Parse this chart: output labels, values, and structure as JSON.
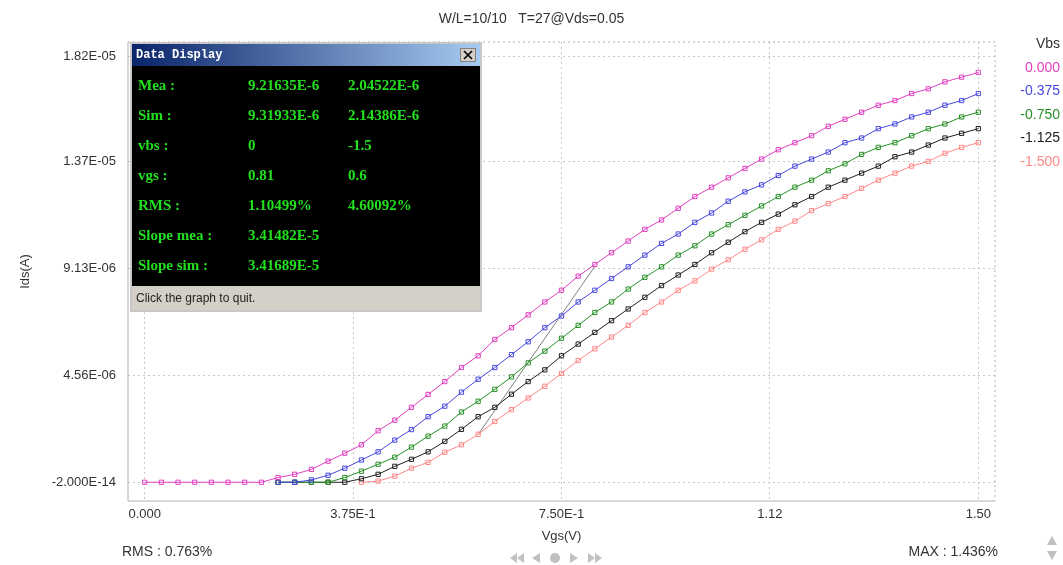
{
  "chart_data": {
    "type": "line",
    "title": "W/L=10/10   T=27@Vds=0.05",
    "xlabel": "Vgs(V)",
    "ylabel": "Ids(A)",
    "legend_title": "Vbs",
    "legend": "right",
    "grid": true,
    "marker": "square",
    "line_style": "solid",
    "xlim": [
      -0.03,
      1.53
    ],
    "ylim": [
      -8e-07,
      1.88e-05
    ],
    "xticks": [
      {
        "value": 0,
        "label": "0.000"
      },
      {
        "value": 0.375,
        "label": "3.75E-1"
      },
      {
        "value": 0.75,
        "label": "7.50E-1"
      },
      {
        "value": 1.125,
        "label": "1.12"
      },
      {
        "value": 1.5,
        "label": "1.50"
      }
    ],
    "yticks": [
      {
        "value": -2e-14,
        "label": "-2.000E-14"
      },
      {
        "value": 4.56e-06,
        "label": "4.56E-06"
      },
      {
        "value": 9.13e-06,
        "label": "9.13E-06"
      },
      {
        "value": 1.37e-05,
        "label": "1.37E-05"
      },
      {
        "value": 1.82e-05,
        "label": "1.82E-05"
      }
    ],
    "x": [
      0,
      0.03,
      0.06,
      0.09,
      0.12,
      0.15,
      0.18,
      0.21,
      0.24,
      0.27,
      0.3,
      0.33,
      0.36,
      0.39,
      0.42,
      0.45,
      0.48,
      0.51,
      0.54,
      0.57,
      0.6,
      0.63,
      0.66,
      0.69,
      0.72,
      0.75,
      0.78,
      0.81,
      0.84,
      0.87,
      0.9,
      0.93,
      0.96,
      0.99,
      1.02,
      1.05,
      1.08,
      1.11,
      1.14,
      1.17,
      1.2,
      1.23,
      1.26,
      1.29,
      1.32,
      1.35,
      1.38,
      1.41,
      1.44,
      1.47,
      1.5
    ],
    "series": [
      {
        "name": "0.000",
        "color": "#e040c0",
        "values": [
          0,
          0,
          0,
          0,
          0,
          0,
          0,
          0,
          2e-07,
          3.4e-07,
          5.5e-07,
          9e-07,
          1.24e-06,
          1.6e-06,
          2.2e-06,
          2.65e-06,
          3.2e-06,
          3.75e-06,
          4.3e-06,
          4.9e-06,
          5.4e-06,
          6.1e-06,
          6.6e-06,
          7.15e-06,
          7.7e-06,
          8.2e-06,
          8.8e-06,
          9.3e-06,
          9.8e-06,
          1.03e-05,
          1.08e-05,
          1.12e-05,
          1.17e-05,
          1.22e-05,
          1.26e-05,
          1.3e-05,
          1.34e-05,
          1.38e-05,
          1.42e-05,
          1.45e-05,
          1.48e-05,
          1.52e-05,
          1.55e-05,
          1.58e-05,
          1.61e-05,
          1.63e-05,
          1.66e-05,
          1.68e-05,
          1.71e-05,
          1.73e-05,
          1.75e-05
        ]
      },
      {
        "name": "-0.375",
        "color": "#4848e0",
        "values": [
          null,
          null,
          null,
          null,
          null,
          null,
          null,
          null,
          0,
          0,
          1e-07,
          3e-07,
          6e-07,
          9.5e-07,
          1.3e-06,
          1.8e-06,
          2.25e-06,
          2.8e-06,
          3.25e-06,
          3.85e-06,
          4.4e-06,
          4.9e-06,
          5.45e-06,
          6e-06,
          6.6e-06,
          7.1e-06,
          7.7e-06,
          8.2e-06,
          8.7e-06,
          9.2e-06,
          9.7e-06,
          1.02e-05,
          1.06e-05,
          1.11e-05,
          1.15e-05,
          1.2e-05,
          1.24e-05,
          1.27e-05,
          1.31e-05,
          1.35e-05,
          1.38e-05,
          1.41e-05,
          1.45e-05,
          1.47e-05,
          1.51e-05,
          1.53e-05,
          1.56e-05,
          1.58e-05,
          1.61e-05,
          1.63e-05,
          1.66e-05
        ]
      },
      {
        "name": "-0.750",
        "color": "#289028",
        "values": [
          null,
          null,
          null,
          null,
          null,
          null,
          null,
          null,
          0,
          0,
          0,
          0,
          2e-07,
          4.7e-07,
          7.7e-07,
          1.07e-06,
          1.5e-06,
          1.97e-06,
          2.4e-06,
          3e-06,
          3.46e-06,
          3.97e-06,
          4.5e-06,
          5.1e-06,
          5.6e-06,
          6.15e-06,
          6.7e-06,
          7.25e-06,
          7.7e-06,
          8.25e-06,
          8.75e-06,
          9.2e-06,
          9.7e-06,
          1.01e-05,
          1.06e-05,
          1.1e-05,
          1.14e-05,
          1.18e-05,
          1.22e-05,
          1.26e-05,
          1.29e-05,
          1.33e-05,
          1.36e-05,
          1.4e-05,
          1.43e-05,
          1.45e-05,
          1.48e-05,
          1.51e-05,
          1.53e-05,
          1.56e-05,
          1.58e-05
        ]
      },
      {
        "name": "-1.125",
        "color": "#202020",
        "values": [
          null,
          null,
          null,
          null,
          null,
          null,
          null,
          null,
          0,
          0,
          0,
          0,
          0,
          1.5e-07,
          3.4e-07,
          6.8e-07,
          9.8e-07,
          1.3e-06,
          1.75e-06,
          2.26e-06,
          2.8e-06,
          3.2e-06,
          3.76e-06,
          4.3e-06,
          4.8e-06,
          5.4e-06,
          5.9e-06,
          6.4e-06,
          6.9e-06,
          7.4e-06,
          7.9e-06,
          8.4e-06,
          8.85e-06,
          9.3e-06,
          9.8e-06,
          1.025e-05,
          1.07e-05,
          1.11e-05,
          1.145e-05,
          1.185e-05,
          1.22e-05,
          1.26e-05,
          1.29e-05,
          1.32e-05,
          1.35e-05,
          1.39e-05,
          1.41e-05,
          1.44e-05,
          1.47e-05,
          1.49e-05,
          1.51e-05
        ]
      },
      {
        "name": "-1.500",
        "color": "#ff8888",
        "values": [
          null,
          null,
          null,
          null,
          null,
          null,
          null,
          null,
          null,
          null,
          null,
          null,
          null,
          0,
          5e-08,
          2.6e-07,
          6e-07,
          8.5e-07,
          1.28e-06,
          1.6e-06,
          2.05e-06,
          2.6e-06,
          3.1e-06,
          3.6e-06,
          4.1e-06,
          4.65e-06,
          5.2e-06,
          5.7e-06,
          6.2e-06,
          6.7e-06,
          7.25e-06,
          7.7e-06,
          8.2e-06,
          8.6e-06,
          9.1e-06,
          9.5e-06,
          9.95e-06,
          1.035e-05,
          1.08e-05,
          1.115e-05,
          1.16e-05,
          1.19e-05,
          1.22e-05,
          1.255e-05,
          1.29e-05,
          1.32e-05,
          1.35e-05,
          1.37e-05,
          1.405e-05,
          1.43e-05,
          1.45e-05
        ]
      },
      {
        "type": "line",
        "marker": "none",
        "color": "#808080",
        "x": [
          0.6,
          0.81
        ],
        "values": [
          2.04522e-06,
          9.21635e-06
        ]
      }
    ],
    "annotations": [
      "RMS : 0.763%",
      "MAX : 1.436%",
      "Data Display",
      "Mea :\t9.21635E-6\t2.04522E-6",
      "Sim :\t9.31933E-6\t2.14386E-6",
      "vbs :\t0\t-1.5",
      "vgs :\t0.81\t0.6",
      "RMS :\t1.10499%\t4.60092%",
      "Slope mea :\t3.41482E-5",
      "Slope sim :\t3.41689E-5",
      "Click the graph to quit."
    ]
  }
}
